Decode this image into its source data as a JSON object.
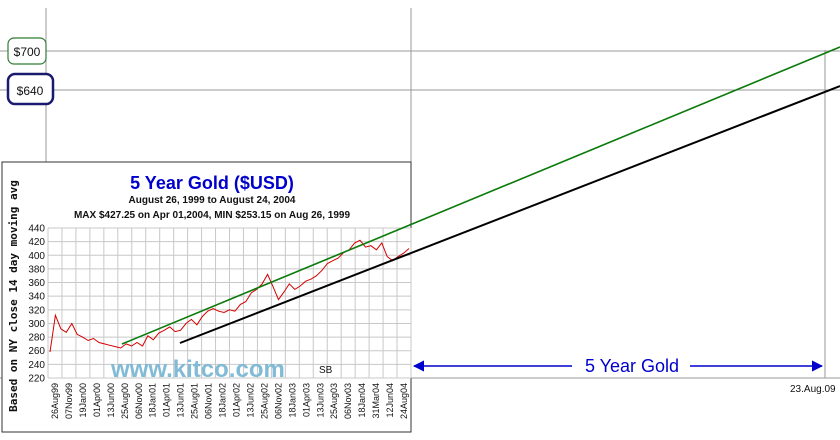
{
  "chart_data": {
    "type": "line",
    "inset": {
      "title": "5 Year Gold ($USD)",
      "subtitle": "August 26, 1999 to August 24, 2004",
      "stats": "MAX $427.25 on Apr 01,2004, MIN $253.15 on Aug 26, 1999",
      "ylabel": "Based on NY close 14 day moving avg",
      "watermark": "www.kitco.com",
      "initials": "SB",
      "ylim": [
        220,
        440
      ],
      "yticks": [
        220,
        240,
        260,
        280,
        300,
        320,
        340,
        360,
        380,
        400,
        420,
        440
      ],
      "categories": [
        "26Aug99",
        "07Nov99",
        "19Jan00",
        "01Apr00",
        "13Jun00",
        "25Aug00",
        "06Nov00",
        "18Jan01",
        "01Apr01",
        "13Jun01",
        "25Aug01",
        "06Nov01",
        "18Jan02",
        "01Apr02",
        "13Jun02",
        "25Aug02",
        "06Nov02",
        "18Jan03",
        "01Apr03",
        "13Jun03",
        "25Aug03",
        "06Nov03",
        "18Jan04",
        "31Mar04",
        "12Jun04",
        "24Aug04"
      ],
      "series": [
        {
          "color": "#d40000",
          "values": [
            258,
            312,
            292,
            287,
            300,
            284,
            280,
            275,
            278,
            272,
            270,
            268,
            266,
            264,
            270,
            267,
            272,
            267,
            282,
            276,
            286,
            290,
            295,
            288,
            290,
            300,
            306,
            298,
            310,
            318,
            322,
            318,
            316,
            320,
            318,
            328,
            332,
            345,
            350,
            358,
            372,
            354,
            335,
            346,
            358,
            350,
            355,
            362,
            365,
            370,
            378,
            388,
            392,
            396,
            404,
            408,
            418,
            422,
            412,
            414,
            408,
            418,
            398,
            392,
            398,
            403,
            410
          ]
        }
      ]
    },
    "trendlines": [
      {
        "name": "upper",
        "color": "#0a7a0a"
      },
      {
        "name": "lower",
        "color": "#000000"
      }
    ],
    "price_levels": [
      {
        "label": "$700",
        "color": "#2e7d32"
      },
      {
        "label": "$640",
        "color": "#1a1a6e"
      }
    ],
    "projection_label": "5 Year Gold",
    "projection_date": "23.Aug.09",
    "accent_colors": {
      "title": "#0000cc",
      "projection": "#0000cc"
    }
  }
}
